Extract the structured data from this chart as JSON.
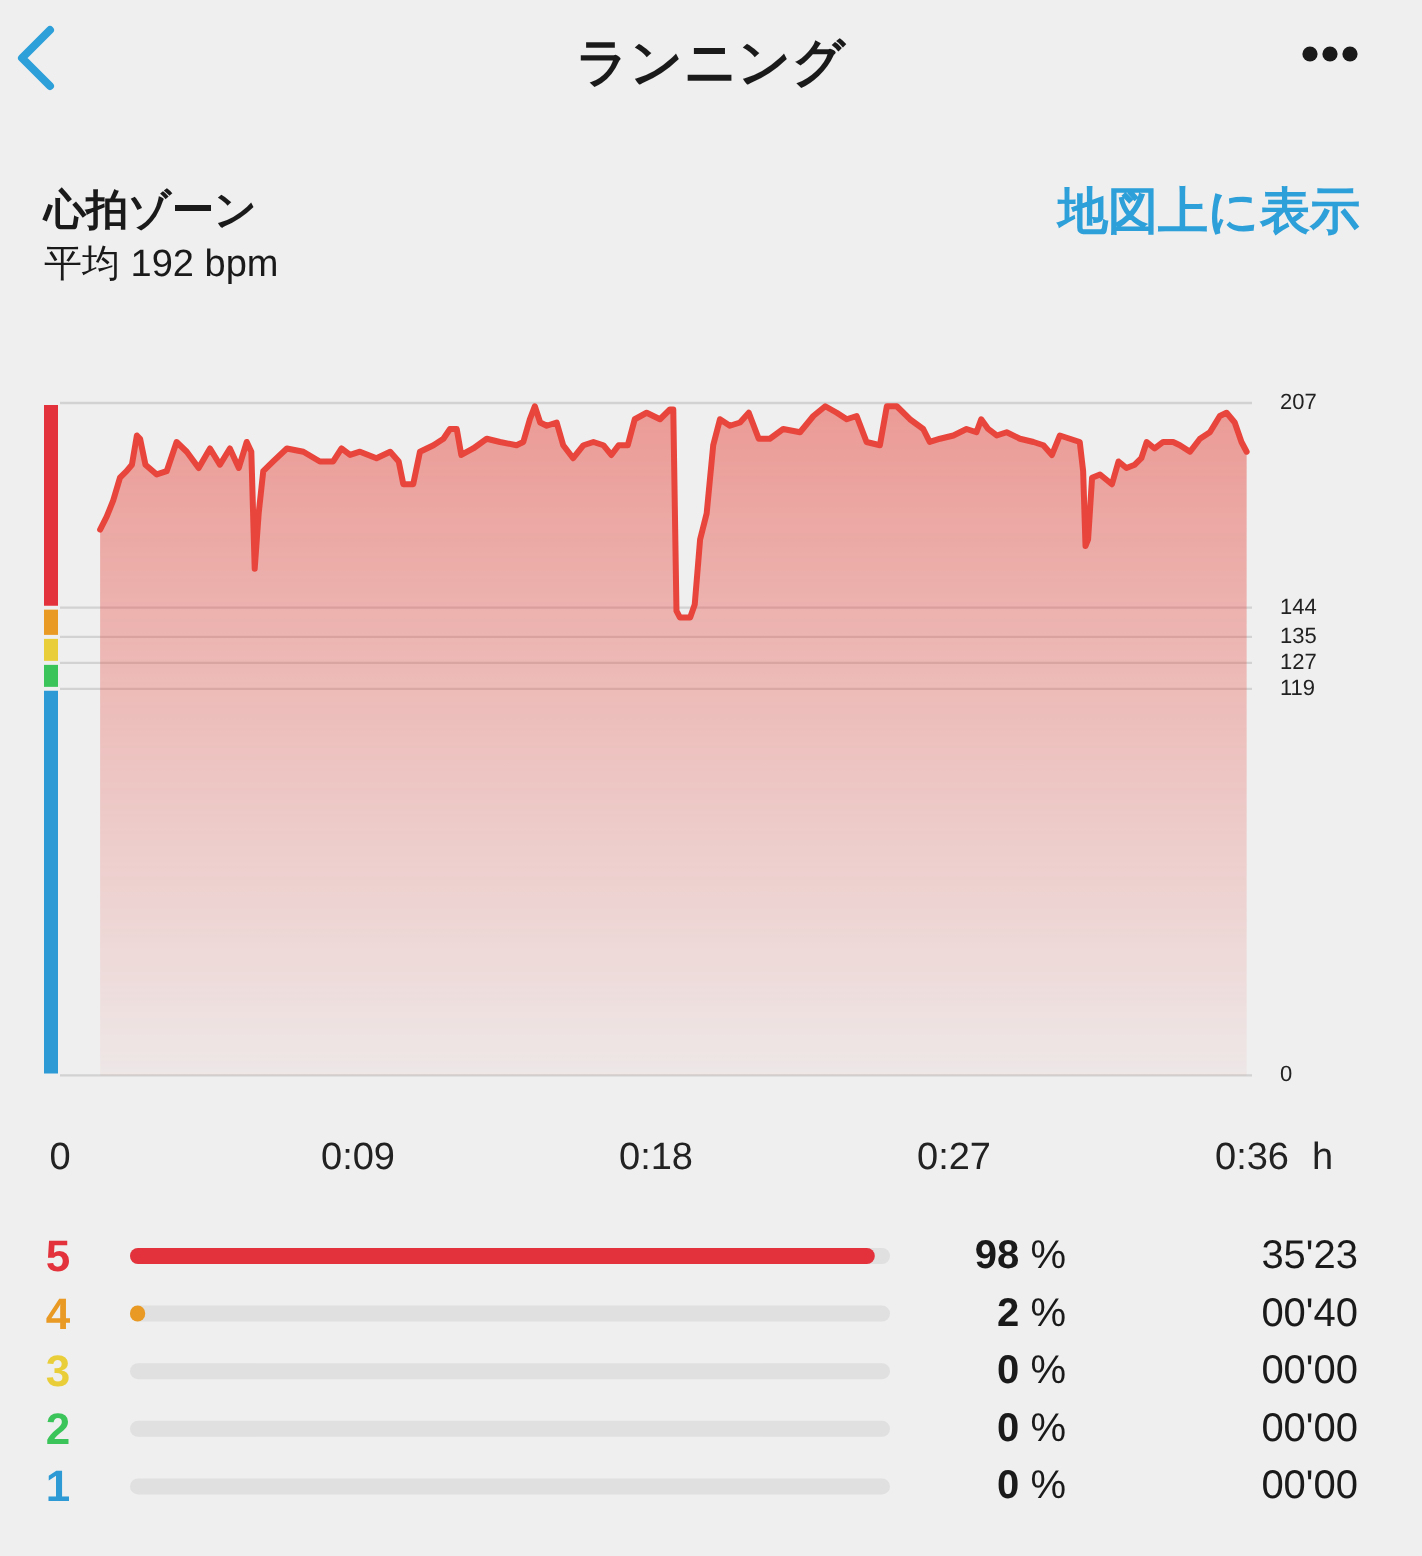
{
  "chart_data": [
    {
      "type": "other",
      "title": "ランニング"
    },
    {
      "type": "area",
      "title": "心拍ゾーン",
      "subtitle": "平均 192 bpm",
      "xlabel": "h",
      "annotations": [
        "地図上に表示"
      ],
      "color": "#e8453c",
      "x": [
        0.0202,
        0.0235,
        0.0268,
        0.0302,
        0.0335,
        0.0362,
        0.0387,
        0.0403,
        0.043,
        0.0487,
        0.0537,
        0.0587,
        0.0638,
        0.0698,
        0.0755,
        0.0805,
        0.0855,
        0.09,
        0.094,
        0.0963,
        0.098,
        0.1,
        0.1023,
        0.1073,
        0.1142,
        0.1225,
        0.1308,
        0.1375,
        0.1417,
        0.146,
        0.151,
        0.1593,
        0.1662,
        0.1705,
        0.1728,
        0.1778,
        0.1812,
        0.188,
        0.193,
        0.1963,
        0.1997,
        0.202,
        0.208,
        0.2148,
        0.2215,
        0.2298,
        0.2332,
        0.2365,
        0.239,
        0.2417,
        0.245,
        0.25,
        0.2533,
        0.2583,
        0.2635,
        0.2685,
        0.2735,
        0.2775,
        0.2812,
        0.2858,
        0.2893,
        0.2953,
        0.302,
        0.307,
        0.3087,
        0.3103,
        0.312,
        0.3172,
        0.3195,
        0.3222,
        0.3255,
        0.3288,
        0.3322,
        0.3372,
        0.3423,
        0.3467,
        0.3517,
        0.3573,
        0.364,
        0.3725,
        0.3792,
        0.3852,
        0.391,
        0.396,
        0.401,
        0.406,
        0.4127,
        0.4162,
        0.4212,
        0.4278,
        0.4345,
        0.4378,
        0.443,
        0.4497,
        0.4563,
        0.4613,
        0.4637,
        0.4672,
        0.4715,
        0.4765,
        0.4832,
        0.49,
        0.495,
        0.4993,
        0.5033,
        0.5083,
        0.5133,
        0.515,
        0.5162,
        0.5175,
        0.5195,
        0.5235,
        0.5295,
        0.5328,
        0.5368,
        0.541,
        0.5443,
        0.547,
        0.551,
        0.5553,
        0.5603,
        0.5637,
        0.5688,
        0.5738,
        0.5788,
        0.5838,
        0.5872,
        0.5913,
        0.5947,
        0.5973
      ],
      "values": [
        168,
        172,
        177,
        184,
        186,
        188,
        197,
        196,
        188,
        185,
        186,
        195,
        192,
        187,
        193,
        188,
        193,
        187,
        195,
        192,
        156,
        173,
        186,
        189,
        193,
        192,
        189,
        189,
        193,
        191,
        192,
        190,
        192,
        189,
        182,
        182,
        192,
        194,
        196,
        199,
        199,
        191,
        193,
        196,
        195,
        194,
        195,
        202,
        206,
        201,
        200,
        201,
        194,
        190,
        194,
        195,
        194,
        191,
        194,
        194,
        202,
        204,
        202,
        205,
        205,
        143,
        141,
        141,
        145,
        165,
        173,
        194,
        202,
        200,
        201,
        204,
        196,
        196,
        199,
        198,
        203,
        206,
        204,
        202,
        203,
        195,
        194,
        206,
        206,
        202,
        199,
        195,
        196,
        197,
        199,
        198,
        202,
        199,
        197,
        198,
        196,
        195,
        194,
        191,
        197,
        196,
        195,
        186,
        163,
        165,
        184,
        185,
        182,
        189,
        187,
        188,
        190,
        195,
        193,
        195,
        195,
        194,
        192,
        196,
        198,
        203,
        204,
        201,
        195,
        192
      ],
      "xlim": [
        0,
        0.6
      ],
      "xticks": [
        0,
        {
          "value": 0.15,
          "label": "0:09"
        },
        {
          "value": 0.3,
          "label": "0:18"
        },
        {
          "value": 0.45,
          "label": "0:27"
        },
        {
          "value": 0.6,
          "label": "0:36"
        }
      ],
      "ylim": [
        0,
        207
      ],
      "yticks": [
        0,
        119,
        127,
        135,
        144,
        207
      ],
      "grid": "y"
    },
    {
      "type": "bar",
      "orientation": "horizontal",
      "categories": [
        "5",
        "4",
        "3",
        "2",
        "1"
      ],
      "values": [
        98,
        2,
        0,
        0,
        0
      ],
      "colors": [
        "#e3323b",
        "#e89a24",
        "#e9ce3a",
        "#3bc45a",
        "#2d9ad5"
      ],
      "value_labels": [
        "98 %",
        "2 %",
        "0 %",
        "0 %",
        "0 %"
      ],
      "annotations": [
        "35'23",
        "00'40",
        "00'00",
        "00'00",
        "00'00"
      ],
      "grid": "y",
      "tick_labels": "y"
    }
  ]
}
